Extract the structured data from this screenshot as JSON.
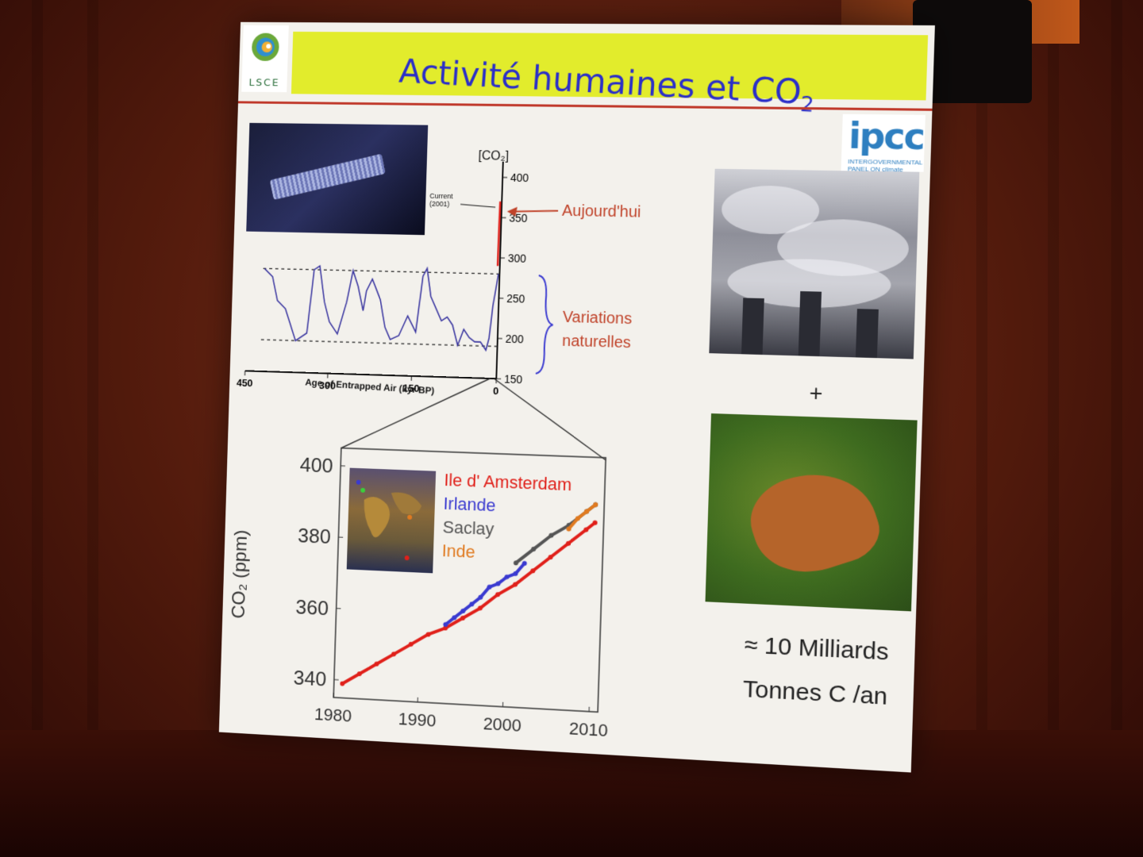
{
  "slide": {
    "title": "Activité humaines et CO",
    "title_subscript": "2",
    "logo_left_text": "LSCE",
    "logo_right_text": "ipcc",
    "logo_right_subtext": "INTERGOVERNMENTAL PANEL ON climate change"
  },
  "annotations": {
    "today": "Aujourd'hui",
    "variations_line1": "Variations",
    "variations_line2": "naturelles",
    "current_line1": "Current",
    "current_line2": "(2001)",
    "co2_axis_label": "[CO₂]",
    "plus": "+",
    "milliards": "≈ 10 Milliards",
    "tonnes": "Tonnes C /an"
  },
  "chart_data": [
    {
      "type": "line",
      "xlabel": "Age of Entrapped Air (kyr BP)",
      "ylabel": "[CO₂]",
      "x_ticks": [
        "450",
        "300",
        "150",
        "0"
      ],
      "y_ticks": [
        "150",
        "200",
        "250",
        "300",
        "350",
        "400"
      ],
      "xlim": [
        450,
        0
      ],
      "ylim": [
        150,
        400
      ],
      "reference_lines": [
        280,
        190
      ],
      "series": [
        {
          "x": [
            420,
            405,
            395,
            380,
            360,
            340,
            330,
            320,
            310,
            300,
            285,
            270,
            260,
            250,
            240,
            235,
            225,
            210,
            200,
            190,
            175,
            160,
            145,
            135,
            128,
            120,
            110,
            100,
            90,
            80,
            70,
            60,
            50,
            40,
            30,
            20,
            15,
            10,
            5,
            2
          ],
          "y": [
            280,
            270,
            240,
            230,
            190,
            200,
            280,
            285,
            240,
            215,
            200,
            240,
            280,
            260,
            230,
            255,
            270,
            245,
            210,
            195,
            200,
            225,
            205,
            275,
            285,
            250,
            235,
            220,
            225,
            215,
            190,
            210,
            200,
            195,
            195,
            185,
            200,
            240,
            265,
            280
          ]
        },
        {
          "name": "",
          "x": [
            1,
            0.5,
            0
          ],
          "y": [
            290,
            340,
            370
          ]
        }
      ],
      "annotations": [
        "Current (2001)"
      ]
    },
    {
      "type": "scatter",
      "xlabel": "",
      "ylabel": "CO₂ (ppm)",
      "x_ticks": [
        "1980",
        "1990",
        "2000",
        "2010"
      ],
      "y_ticks": [
        "340",
        "360",
        "380",
        "400"
      ],
      "xlim": [
        1980,
        2011
      ],
      "ylim": [
        335,
        405
      ],
      "series": [
        {
          "name": "Ile d' Amsterdam",
          "color": "#e0201a",
          "x": [
            1981,
            1983,
            1985,
            1987,
            1989,
            1991,
            1993,
            1995,
            1997,
            1999,
            2001,
            2003,
            2005,
            2007,
            2009,
            2010
          ],
          "y": [
            339,
            342,
            345,
            348,
            351,
            354,
            356,
            359,
            362,
            366,
            369,
            373,
            377,
            381,
            385,
            387
          ]
        },
        {
          "name": "Irlande",
          "color": "#3a3ad0",
          "x": [
            1993,
            1994,
            1995,
            1996,
            1997,
            1998,
            1999,
            2000,
            2001,
            2002
          ],
          "y": [
            357,
            359,
            361,
            363,
            365,
            368,
            369,
            371,
            372,
            375
          ]
        },
        {
          "name": "Saclay",
          "color": "#555555",
          "x": [
            2001,
            2003,
            2005,
            2007,
            2009,
            2010
          ],
          "y": [
            375,
            379,
            383,
            386,
            390,
            392
          ]
        },
        {
          "name": "Inde",
          "color": "#e07a20",
          "x": [
            2007,
            2008,
            2009,
            2010
          ],
          "y": [
            385,
            388,
            390,
            392
          ]
        }
      ]
    }
  ],
  "colors": {
    "title_band": "#e2ec2c",
    "title_text": "#2b2fc8",
    "annotation_red": "#c0432a",
    "ice_core_line": "#3a36a0",
    "modern_red": "#e0201a"
  }
}
